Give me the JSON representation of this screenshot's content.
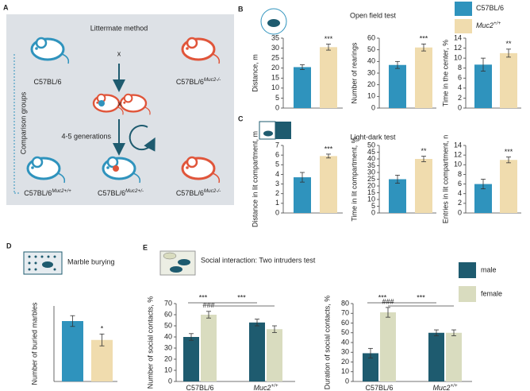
{
  "panels": [
    {
      "label": "A",
      "title": "Littermate method"
    },
    {
      "label": "B",
      "title": "Open field test"
    },
    {
      "label": "C",
      "title": "Light-dark test"
    },
    {
      "label": "D",
      "title": "Marble burying"
    },
    {
      "label": "E",
      "title": "Social interaction: Two intruders test"
    }
  ],
  "diagram": {
    "side_label": "Comparison groups",
    "parents": [
      {
        "base": "C57BL/6"
      },
      {
        "base": "C57BL/6",
        "sup": "Muc2-/-"
      }
    ],
    "cross": [
      "x",
      "x"
    ],
    "generations": "4-5 generations",
    "offspring": [
      {
        "base": "C57BL/6",
        "sup": "Muc2+/+"
      },
      {
        "base": "C57BL/6",
        "sup": "Muc2+/-"
      },
      {
        "base": "C57BL/6",
        "sup": "Muc2-/-"
      }
    ]
  },
  "legend": [
    {
      "base": "C57BL/6",
      "color": "#2f93bd"
    },
    {
      "base": "Muc2",
      "sup": "+/+",
      "color": "#f0dcae"
    }
  ],
  "legend_e": [
    {
      "name": "male",
      "color": "#1e5b6f"
    },
    {
      "name": "female",
      "color": "#d9dcbf"
    }
  ],
  "chart_data": [
    {
      "type": "bar",
      "y_label": "Distance, m",
      "ylim": [
        0,
        35
      ],
      "yticks": [
        0,
        5,
        10,
        15,
        20,
        25,
        30,
        35
      ],
      "values": [
        20.5,
        30.5
      ],
      "errors": [
        1.2,
        1.5
      ],
      "annotations": [
        "***"
      ]
    },
    {
      "type": "bar",
      "y_label": "Number of rearings",
      "ylim": [
        0,
        60
      ],
      "yticks": [
        0,
        10,
        20,
        30,
        40,
        50,
        60
      ],
      "values": [
        37,
        52
      ],
      "errors": [
        3,
        3
      ],
      "annotations": [
        "***"
      ]
    },
    {
      "type": "bar",
      "y_label": "Time in the center, %",
      "ylim": [
        0,
        14
      ],
      "yticks": [
        0,
        2,
        4,
        6,
        8,
        10,
        12,
        14
      ],
      "values": [
        8.7,
        11
      ],
      "errors": [
        1.3,
        0.8
      ],
      "annotations": [
        "**"
      ]
    },
    {
      "type": "bar",
      "y_label": "Distance in lit compartment, m",
      "ylim": [
        0,
        7
      ],
      "yticks": [
        0,
        1,
        2,
        3,
        4,
        5,
        6,
        7
      ],
      "values": [
        3.7,
        5.9
      ],
      "errors": [
        0.5,
        0.2
      ],
      "annotations": [
        "***"
      ]
    },
    {
      "type": "bar",
      "y_label": "Time in lit compartment, %",
      "ylim": [
        0,
        50
      ],
      "yticks": [
        0,
        5,
        10,
        15,
        20,
        25,
        30,
        35,
        40,
        45,
        50
      ],
      "values": [
        25,
        40
      ],
      "errors": [
        3,
        2
      ],
      "annotations": [
        "**"
      ]
    },
    {
      "type": "bar",
      "y_label": "Entries in lit compartment, n",
      "ylim": [
        0,
        14
      ],
      "yticks": [
        0,
        2,
        4,
        6,
        8,
        10,
        12,
        14
      ],
      "values": [
        6,
        11
      ],
      "errors": [
        1,
        0.6
      ],
      "annotations": [
        "***"
      ]
    },
    {
      "type": "bar",
      "y_label": "Number of buried marbles",
      "ylim": [
        0,
        14
      ],
      "values": [
        11.2,
        7.7
      ],
      "errors": [
        1,
        1.1
      ],
      "annotations": [
        "*"
      ]
    },
    {
      "type": "grouped_bar",
      "y_label": "Number of social contacts, %",
      "ylim": [
        0,
        70
      ],
      "yticks": [
        0,
        10,
        20,
        30,
        40,
        50,
        60,
        70
      ],
      "categories": [
        {
          "base": "C57BL/6"
        },
        {
          "base": "Muc2",
          "sup": "+/+"
        }
      ],
      "series": [
        {
          "values": [
            40,
            53
          ],
          "errors": [
            3,
            3
          ]
        },
        {
          "values": [
            60,
            47
          ],
          "errors": [
            3,
            3
          ]
        }
      ],
      "annotations": [
        "###",
        "***",
        "***"
      ]
    },
    {
      "type": "grouped_bar",
      "y_label": "Duration of social contacts, %",
      "ylim": [
        0,
        80
      ],
      "yticks": [
        0,
        10,
        20,
        30,
        40,
        50,
        60,
        70,
        80
      ],
      "categories": [
        {
          "base": "C57BL/6"
        },
        {
          "base": "Muc2",
          "sup": "+/+"
        }
      ],
      "series": [
        {
          "values": [
            29,
            50
          ],
          "errors": [
            5,
            3
          ]
        },
        {
          "values": [
            71,
            50
          ],
          "errors": [
            5,
            3
          ]
        }
      ],
      "annotations": [
        "###",
        "***",
        "***"
      ]
    }
  ]
}
